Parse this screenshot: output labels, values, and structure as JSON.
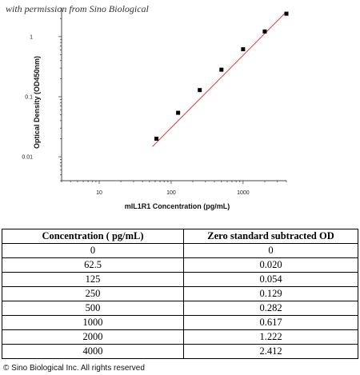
{
  "watermark": "with permission from Sino Biological",
  "copyright": "© Sino Biological Inc. All rights reserved",
  "chart_data": {
    "type": "scatter",
    "xlabel": "mIL1R1 Concentration (pg/mL)",
    "ylabel": "Optical Density (OD450nm)",
    "xscale": "log",
    "yscale": "log",
    "xlim": [
      3,
      4000
    ],
    "ylim": [
      0.004,
      3
    ],
    "x_ticks": [
      10,
      100,
      1000
    ],
    "x_tick_labels": [
      "10",
      "100",
      "1000"
    ],
    "y_ticks": [
      0.01,
      0.1,
      1
    ],
    "y_tick_labels": [
      "0.01",
      "0.1",
      "1"
    ],
    "grid": false,
    "x": [
      62.5,
      125,
      250,
      500,
      1000,
      2000,
      4000
    ],
    "y": [
      0.02,
      0.054,
      0.129,
      0.282,
      0.617,
      1.222,
      2.412
    ],
    "marker_color": "#000000",
    "fit_color": "#e03030",
    "fit_line": {
      "x": [
        55,
        4000
      ],
      "y": [
        0.0148,
        2.6
      ]
    }
  },
  "table": {
    "headers": [
      "Concentration ( pg/mL)",
      "Zero standard subtracted OD"
    ],
    "rows": [
      [
        "0",
        "0"
      ],
      [
        "62.5",
        "0.020"
      ],
      [
        "125",
        "0.054"
      ],
      [
        "250",
        "0.129"
      ],
      [
        "500",
        "0.282"
      ],
      [
        "1000",
        "0.617"
      ],
      [
        "2000",
        "1.222"
      ],
      [
        "4000",
        "2.412"
      ]
    ]
  }
}
